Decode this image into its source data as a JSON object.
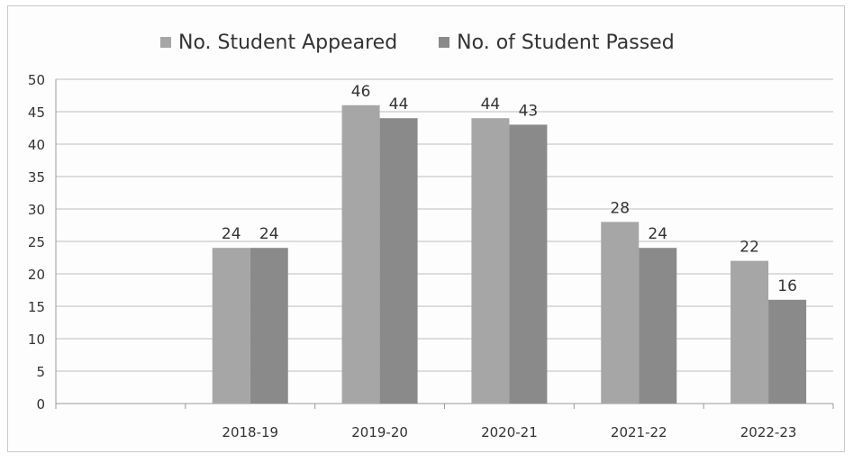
{
  "chart_data": {
    "type": "bar",
    "categories": [
      "",
      "2018-19",
      "2019-20",
      "2020-21",
      "2021-22",
      "2022-23"
    ],
    "series": [
      {
        "name": "No. Student Appeared",
        "values": [
          null,
          24,
          46,
          44,
          28,
          22
        ],
        "color": "#a6a6a6"
      },
      {
        "name": "No. of Student Passed",
        "values": [
          null,
          24,
          44,
          43,
          24,
          16
        ],
        "color": "#8a8a8a"
      }
    ],
    "data_labels": true,
    "title": "",
    "xlabel": "",
    "ylabel": "",
    "ylim": [
      0,
      50
    ],
    "yticks": [
      0,
      5,
      10,
      15,
      20,
      25,
      30,
      35,
      40,
      45,
      50
    ],
    "grid": true,
    "legend_position": "top"
  }
}
